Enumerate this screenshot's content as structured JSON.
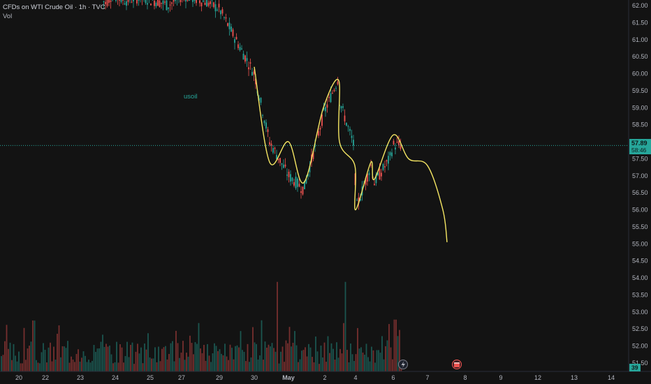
{
  "header": {
    "title": "CFDs on WTI Crude Oil · 1h · TVC",
    "volume_label": "Vol"
  },
  "annotation": {
    "text": "usoil"
  },
  "price_scale": {
    "ticks": [
      "62.00",
      "61.50",
      "61.00",
      "60.50",
      "60.00",
      "59.50",
      "59.00",
      "58.50",
      "58.00",
      "57.50",
      "57.00",
      "56.50",
      "56.00",
      "55.50",
      "55.00",
      "54.50",
      "54.00",
      "53.50",
      "53.00",
      "52.50",
      "52.00",
      "51.50"
    ],
    "current_price": "57.89",
    "countdown": "58:46",
    "volume_badge": "39"
  },
  "time_scale": {
    "labels": [
      "20",
      "22",
      "23",
      "24",
      "25",
      "27",
      "29",
      "30",
      "May",
      "2",
      "4",
      "6",
      "7",
      "8",
      "9",
      "12",
      "13",
      "14"
    ]
  },
  "colors": {
    "background": "#131313",
    "up": "#26a69a",
    "down": "#ef5350",
    "projection": "#f5e663",
    "grid_text": "#b2b5be",
    "price_line": "#26a69a"
  },
  "icons": [
    "lightning-icon",
    "calendar-icon"
  ],
  "chart_data": {
    "type": "candlestick",
    "title": "CFDs on WTI Crude Oil",
    "interval": "1h",
    "ylim": [
      51.5,
      62.0
    ],
    "price_trace": [
      [
        "Apr 20",
        62.3
      ],
      [
        "Apr 24",
        62.1
      ],
      [
        "Apr 27",
        62.2
      ],
      [
        "Apr 28",
        61.8
      ],
      [
        "Apr 29",
        61.0
      ],
      [
        "Apr 30",
        60.0
      ],
      [
        "Apr 30 PM",
        58.0
      ],
      [
        "May 1",
        57.0
      ],
      [
        "May 1 PM",
        56.6
      ],
      [
        "May 2",
        58.8
      ],
      [
        "May 2 PM",
        59.9
      ],
      [
        "May 3",
        59.2
      ],
      [
        "May 3 PM",
        57.8
      ],
      [
        "May 4",
        56.0
      ],
      [
        "May 4 PM",
        57.3
      ],
      [
        "May 5",
        56.8
      ],
      [
        "May 5 PM",
        57.5
      ],
      [
        "May 6",
        57.9
      ]
    ],
    "projection": [
      [
        "Apr 30",
        60.2
      ],
      [
        "Apr 30 PM",
        57.4
      ],
      [
        "May 1",
        58.0
      ],
      [
        "May 1 PM",
        56.8
      ],
      [
        "May 2",
        59.0
      ],
      [
        "May 2 PM",
        59.8
      ],
      [
        "May 3",
        58.0
      ],
      [
        "May 3 PM",
        57.3
      ],
      [
        "May 4",
        56.0
      ],
      [
        "May 4 PM",
        57.4
      ],
      [
        "May 5",
        56.9
      ],
      [
        "May 6",
        58.2
      ],
      [
        "May 6 PM",
        57.5
      ],
      [
        "May 7",
        57.3
      ],
      [
        "May 7 PM",
        56.0
      ],
      [
        "May 8",
        55.05
      ]
    ],
    "current_price": 57.89,
    "volume_peaks": [
      [
        "Apr 23",
        "high"
      ],
      [
        "Apr 30",
        "high"
      ],
      [
        "May 3",
        "high"
      ],
      [
        "May 6",
        "medium"
      ]
    ]
  }
}
